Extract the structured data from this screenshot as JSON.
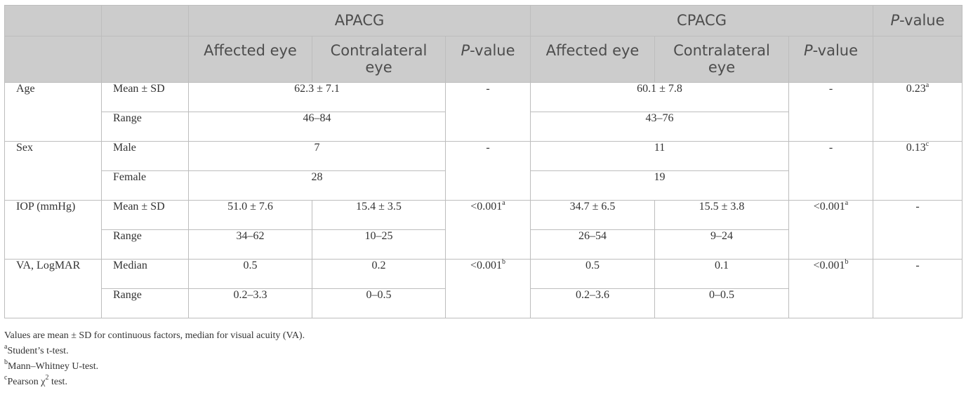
{
  "header": {
    "group1": "APACG",
    "group2": "CPACG",
    "pvalue_italic": "P",
    "pvalue_rest": "-value",
    "affected": "Affected eye",
    "contralateral_line1": "Contralateral",
    "contralateral_line2": "eye"
  },
  "rows": {
    "age": {
      "label": "Age",
      "mean_label": "Mean ± SD",
      "apacg_mean": "62.3 ± 7.1",
      "apacg_p": "-",
      "cpacg_mean": "60.1 ± 7.8",
      "cpacg_p": "-",
      "p": "0.23",
      "p_sup": "a",
      "range_label": "Range",
      "apacg_range": "46–84",
      "cpacg_range": "43–76"
    },
    "sex": {
      "label": "Sex",
      "male_label": "Male",
      "apacg_male": "7",
      "apacg_p": "-",
      "cpacg_male": "11",
      "cpacg_p": "-",
      "p": "0.13",
      "p_sup": "c",
      "female_label": "Female",
      "apacg_female": "28",
      "cpacg_female": "19"
    },
    "iop": {
      "label": "IOP (mmHg)",
      "mean_label": "Mean ± SD",
      "apacg_aff": "51.0 ± 7.6",
      "apacg_con": "15.4 ± 3.5",
      "apacg_p": "<0.001",
      "apacg_p_sup": "a",
      "cpacg_aff": "34.7 ± 6.5",
      "cpacg_con": "15.5 ± 3.8",
      "cpacg_p": "<0.001",
      "cpacg_p_sup": "a",
      "p": "-",
      "range_label": "Range",
      "apacg_aff_range": "34–62",
      "apacg_con_range": "10–25",
      "cpacg_aff_range": "26–54",
      "cpacg_con_range": "9–24"
    },
    "va": {
      "label": "VA, LogMAR",
      "median_label": "Median",
      "apacg_aff": "0.5",
      "apacg_con": "0.2",
      "apacg_p": "<0.001",
      "apacg_p_sup": "b",
      "cpacg_aff": "0.5",
      "cpacg_con": "0.1",
      "cpacg_p": "<0.001",
      "cpacg_p_sup": "b",
      "p": "-",
      "range_label": "Range",
      "apacg_aff_range": "0.2–3.3",
      "apacg_con_range": "0–0.5",
      "cpacg_aff_range": "0.2–3.6",
      "cpacg_con_range": "0–0.5"
    }
  },
  "notes": {
    "line1": "Values are mean ± SD for continuous factors, median for visual acuity (VA).",
    "a_mark": "a",
    "a_text": "Student’s t-test.",
    "b_mark": "b",
    "b_text": "Mann–Whitney U-test.",
    "c_mark": "c",
    "c_text_pre": "Pearson χ",
    "c_text_sup": "2",
    "c_text_post": " test."
  }
}
